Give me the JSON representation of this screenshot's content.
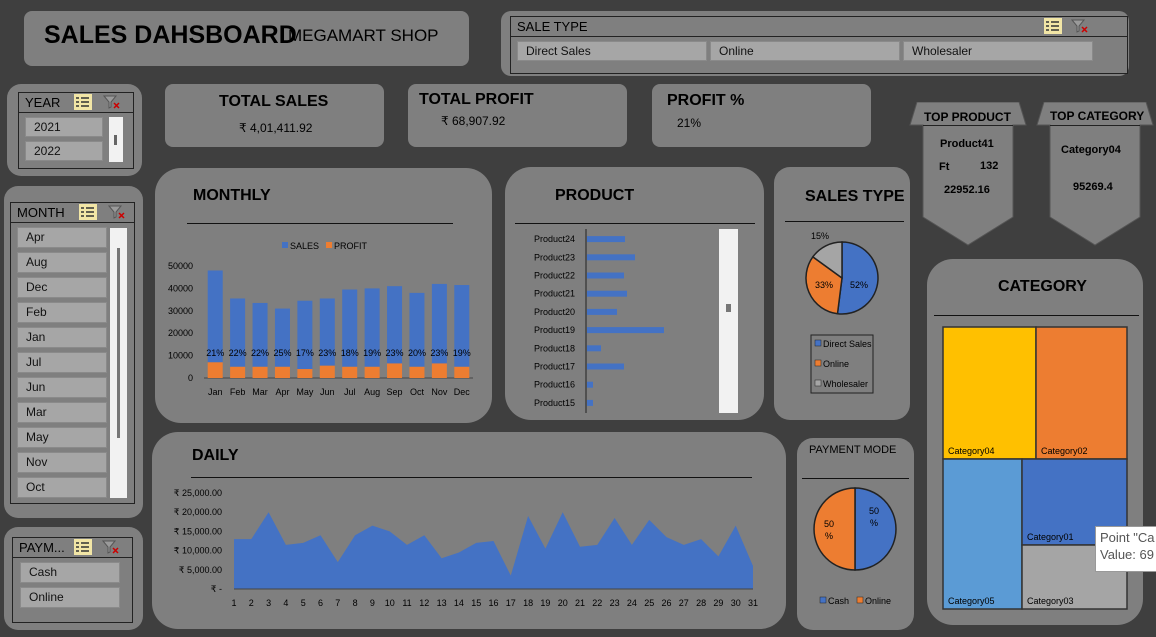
{
  "header": {
    "title": "SALES DAHSBOARD",
    "subtitle": "MEGAMART SHOP"
  },
  "sale_type_slicer": {
    "title": "SALE TYPE",
    "items": [
      "Direct Sales",
      "Online",
      "Wholesaler"
    ]
  },
  "year_slicer": {
    "title": "YEAR",
    "items": [
      "2021",
      "2022"
    ]
  },
  "month_slicer": {
    "title": "MONTH",
    "items": [
      "Apr",
      "Aug",
      "Dec",
      "Feb",
      "Jan",
      "Jul",
      "Jun",
      "Mar",
      "May",
      "Nov",
      "Oct"
    ]
  },
  "payment_slicer": {
    "title": "PAYM...",
    "items": [
      "Cash",
      "Online"
    ]
  },
  "kpis": {
    "total_sales_label": "TOTAL SALES",
    "total_sales_value": "₹ 4,01,411.92",
    "total_profit_label": "TOTAL PROFIT",
    "total_profit_value": "₹ 68,907.92",
    "profit_pct_label": "PROFIT %",
    "profit_pct_value": "21%"
  },
  "top_product": {
    "label": "TOP PRODUCT",
    "name": "Product41",
    "ft_label": "Ft",
    "ft_value": "132",
    "value": "22952.16"
  },
  "top_category": {
    "label": "TOP CATEGORY",
    "name": "Category04",
    "value": "95269.4"
  },
  "monthly_title": "MONTHLY",
  "product_title": "PRODUCT",
  "sales_type_title": "SALES TYPE",
  "daily_title": "DAILY",
  "payment_title": "PAYMENT MODE",
  "category_title": "CATEGORY",
  "tooltip": {
    "line1": "Point \"Ca",
    "line2": "Value: 69"
  },
  "icons": [
    "multi-select-icon",
    "clear-filter-icon"
  ],
  "colors": {
    "blue": "#4472c4",
    "orange": "#ed7d31",
    "gray": "#a5a5a5",
    "yellow": "#ffc000",
    "lightblue": "#5b9bd5"
  },
  "chart_data": [
    {
      "id": "monthly",
      "type": "bar",
      "categories": [
        "Jan",
        "Feb",
        "Mar",
        "Apr",
        "May",
        "Jun",
        "Jul",
        "Aug",
        "Sep",
        "Oct",
        "Nov",
        "Dec"
      ],
      "series": [
        {
          "name": "SALES",
          "values": [
            41000,
            30500,
            28500,
            26000,
            30500,
            30000,
            34500,
            35000,
            34500,
            33000,
            35500,
            36500
          ]
        },
        {
          "name": "PROFIT",
          "values": [
            7000,
            5000,
            5000,
            5000,
            4000,
            5500,
            5000,
            5000,
            6500,
            5000,
            6500,
            5000
          ]
        }
      ],
      "data_labels": [
        "21%",
        "22%",
        "22%",
        "25%",
        "17%",
        "23%",
        "18%",
        "19%",
        "23%",
        "20%",
        "23%",
        "19%"
      ],
      "yticks": [
        "50000",
        "40000",
        "30000",
        "20000",
        "10000",
        "0"
      ],
      "ylim": [
        0,
        50000
      ],
      "legend": "top"
    },
    {
      "id": "product",
      "type": "bar",
      "orientation": "horizontal",
      "categories": [
        "Product24",
        "Product23",
        "Product22",
        "Product21",
        "Product20",
        "Product19",
        "Product18",
        "Product17",
        "Product16",
        "Product15"
      ],
      "values": [
        38,
        48,
        37,
        40,
        30,
        77,
        14,
        37,
        6,
        6
      ]
    },
    {
      "id": "sales_type",
      "type": "pie",
      "labels": [
        "Direct Sales",
        "Online",
        "Wholesaler"
      ],
      "values": [
        52,
        33,
        15
      ],
      "data_labels": [
        "52%",
        "33%",
        "15%"
      ],
      "legend": "bottom"
    },
    {
      "id": "daily",
      "type": "area",
      "x": [
        1,
        2,
        3,
        4,
        5,
        6,
        7,
        8,
        9,
        10,
        11,
        12,
        13,
        14,
        15,
        16,
        17,
        18,
        19,
        20,
        21,
        22,
        23,
        24,
        25,
        26,
        27,
        28,
        29,
        30,
        31
      ],
      "values": [
        13000,
        13000,
        20000,
        11500,
        12000,
        14000,
        7000,
        14000,
        16500,
        15000,
        11500,
        14000,
        8000,
        9500,
        12000,
        12500,
        3500,
        19000,
        10500,
        20000,
        11000,
        11500,
        18500,
        11500,
        18000,
        13500,
        11500,
        13000,
        8500,
        16500,
        6000
      ],
      "yticks": [
        "₹ 25,000.00",
        "₹ 20,000.00",
        "₹ 15,000.00",
        "₹ 10,000.00",
        "₹ 5,000.00",
        "₹ -"
      ],
      "ylim": [
        0,
        25000
      ]
    },
    {
      "id": "payment_mode",
      "type": "pie",
      "labels": [
        "Cash",
        "Online"
      ],
      "values": [
        50,
        50
      ],
      "data_labels": [
        "50 %",
        "50 %"
      ],
      "legend": "bottom"
    },
    {
      "id": "category",
      "type": "treemap",
      "labels": [
        "Category04",
        "Category02",
        "Category05",
        "Category01",
        "Category03"
      ],
      "values": [
        95269.4,
        94000,
        80000,
        68000,
        64000
      ]
    }
  ]
}
